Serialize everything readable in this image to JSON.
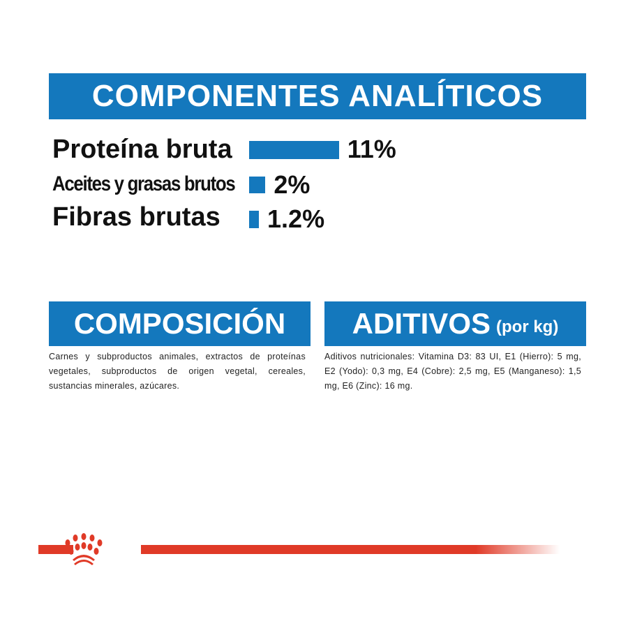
{
  "analytic": {
    "title": "COMPONENTES ANALÍTICOS",
    "items": [
      {
        "label": "Proteína bruta",
        "value": 11,
        "display": "11%"
      },
      {
        "label": "Aceites y grasas brutos",
        "value": 2,
        "display": "2%"
      },
      {
        "label": "Fibras brutas",
        "value": 1.2,
        "display": "1.2%"
      }
    ]
  },
  "composition": {
    "title": "COMPOSICIÓN",
    "text": "Carnes y subproductos animales, extractos de proteínas vegetales, subproductos de origen vegetal, cereales, sustancias minerales, azúcares."
  },
  "additives": {
    "title": "ADITIVOS",
    "unit": "(por kg)",
    "text": "Aditivos nutricionales: Vitamina D3: 83 UI, E1 (Hierro): 5 mg, E2 (Yodo): 0,3 mg, E4 (Cobre): 2,5 mg, E5 (Manganeso): 1,5 mg, E6 (Zinc): 16 mg."
  },
  "colors": {
    "brand_blue": "#1478bd",
    "brand_red": "#e03a27"
  },
  "logo": {
    "icon": "royal-canin-crown-icon"
  }
}
